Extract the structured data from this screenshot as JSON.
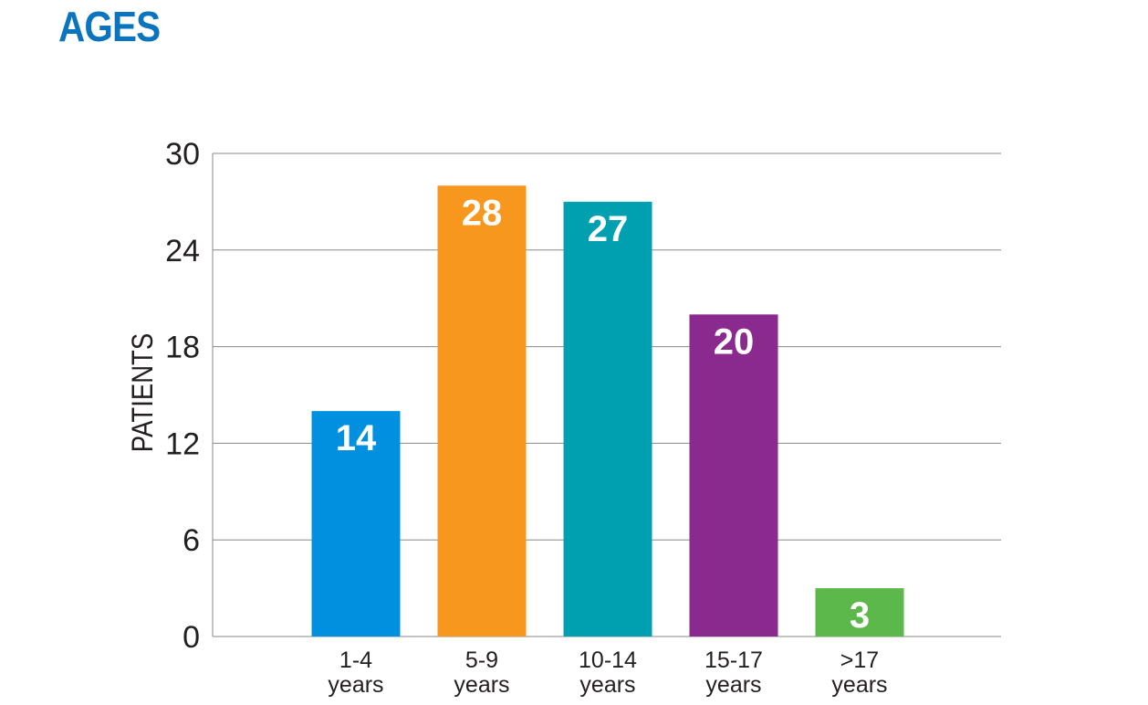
{
  "chart_data": {
    "type": "bar",
    "title": "AGES",
    "ylabel": "PATIENTS",
    "xlabel": "",
    "categories": [
      [
        "1-4",
        "years"
      ],
      [
        "5-9",
        "years"
      ],
      [
        "10-14",
        "years"
      ],
      [
        "15-17",
        "years"
      ],
      [
        ">17",
        "years"
      ]
    ],
    "values": [
      14,
      28,
      27,
      20,
      3
    ],
    "colors": [
      "#0090df",
      "#f7971e",
      "#00a0b0",
      "#8b2a8e",
      "#5cb84a"
    ],
    "ylim": [
      0,
      30
    ],
    "yticks": [
      0,
      6,
      12,
      18,
      24,
      30
    ],
    "grid": true,
    "value_labels": true
  }
}
